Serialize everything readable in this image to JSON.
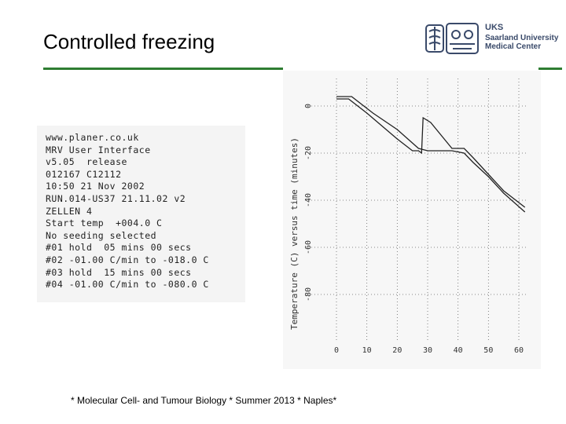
{
  "slide": {
    "title": "Controlled freezing",
    "footer": "* Molecular Cell- and Tumour Biology * Summer 2013 * Naples*"
  },
  "logo": {
    "line1": "UKS",
    "line2": "Saarland University",
    "line3": "Medical Center"
  },
  "printout": {
    "lines": [
      "www.planer.co.uk",
      "MRV User Interface",
      "v5.05  release",
      "012167 C12112",
      "10:50 21 Nov 2002",
      "RUN.014-US37 21.11.02 v2",
      "ZELLEN 4",
      "Start temp  +004.0 C",
      "No seeding selected",
      "#01 hold  05 mins 00 secs",
      "#02 -01.00 C/min to -018.0 C",
      "#03 hold  15 mins 00 secs",
      "#04 -01.00 C/min to -080.0 C"
    ]
  },
  "colors": {
    "accent_green": "#2e7d32",
    "logo_blue": "#3a4a6a"
  },
  "chart_data": {
    "type": "line",
    "ylabel": "Temperature (C) versus time (minutes)",
    "xlim": [
      0,
      60
    ],
    "ylim": [
      -100,
      5
    ],
    "x_ticks": [
      "0",
      "10",
      "20",
      "30",
      "40",
      "50",
      "60"
    ],
    "y_ticks": [
      "0",
      "-20",
      "-40",
      "-60",
      "-80"
    ],
    "grid": true,
    "series": [
      {
        "x": [
          0,
          4,
          10,
          20,
          25,
          27,
          28,
          28.5,
          31,
          38,
          42,
          45,
          50,
          55,
          62
        ],
        "y": [
          3,
          3,
          -3,
          -14,
          -19,
          -19,
          -20,
          -5,
          -7,
          -18,
          -18,
          -22,
          -29,
          -36,
          -43
        ]
      },
      {
        "x": [
          0,
          5,
          12,
          20,
          27,
          30,
          38,
          42,
          45,
          50,
          55,
          62
        ],
        "y": [
          4,
          4,
          -3,
          -10,
          -18,
          -19,
          -19,
          -20,
          -24,
          -30,
          -37,
          -45
        ]
      }
    ]
  }
}
